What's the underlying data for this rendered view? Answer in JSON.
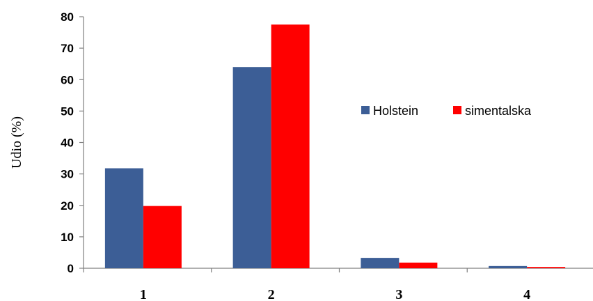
{
  "chart_data": {
    "type": "bar",
    "categories": [
      "1",
      "2",
      "3",
      "4"
    ],
    "series": [
      {
        "name": "Holstein",
        "values": [
          31.8,
          64.0,
          3.3,
          0.7
        ],
        "color": "#3c5e96"
      },
      {
        "name": "simentalska",
        "values": [
          19.8,
          77.5,
          1.8,
          0.4
        ],
        "color": "#ff0000"
      }
    ],
    "title": "",
    "xlabel": "",
    "ylabel": "Udio (%)",
    "ylim": [
      0,
      80
    ],
    "yticks": [
      0,
      10,
      20,
      30,
      40,
      50,
      60,
      70,
      80
    ],
    "grid": false,
    "legend": "right"
  }
}
